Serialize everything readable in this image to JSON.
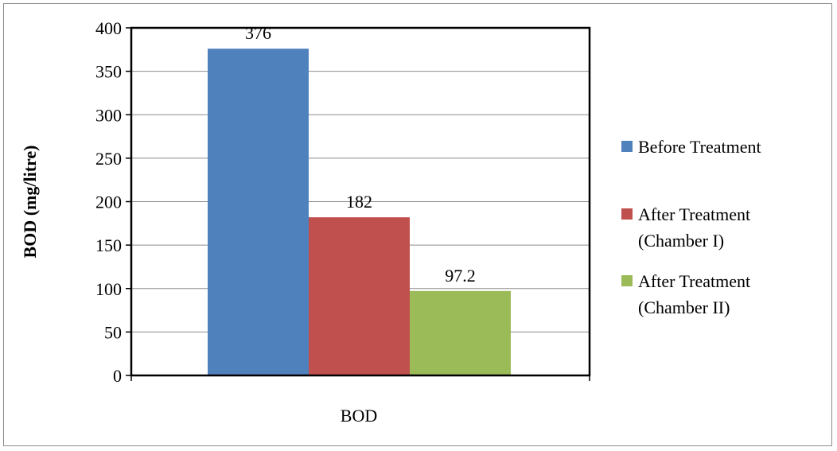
{
  "chart_data": {
    "type": "bar",
    "title": "",
    "xlabel": "",
    "ylabel": "BOD (mg/litre)",
    "categories": [
      "BOD"
    ],
    "series": [
      {
        "name": "Before Treatment",
        "values": [
          376
        ],
        "label": "376",
        "color": "#4f81bd"
      },
      {
        "name": "After Treatment (Chamber I)",
        "legend_lines": [
          "After Treatment",
          "(Chamber I)"
        ],
        "values": [
          182
        ],
        "label": "182",
        "color": "#c0504d"
      },
      {
        "name": "After Treatment (Chamber II)",
        "legend_lines": [
          "After Treatment",
          "(Chamber II)"
        ],
        "values": [
          97.2
        ],
        "label": "97.2",
        "color": "#9bbb59"
      }
    ],
    "ylim": [
      0,
      400
    ],
    "yticks": [
      0,
      50,
      100,
      150,
      200,
      250,
      300,
      350,
      400
    ],
    "grid": true,
    "legend_position": "right"
  }
}
